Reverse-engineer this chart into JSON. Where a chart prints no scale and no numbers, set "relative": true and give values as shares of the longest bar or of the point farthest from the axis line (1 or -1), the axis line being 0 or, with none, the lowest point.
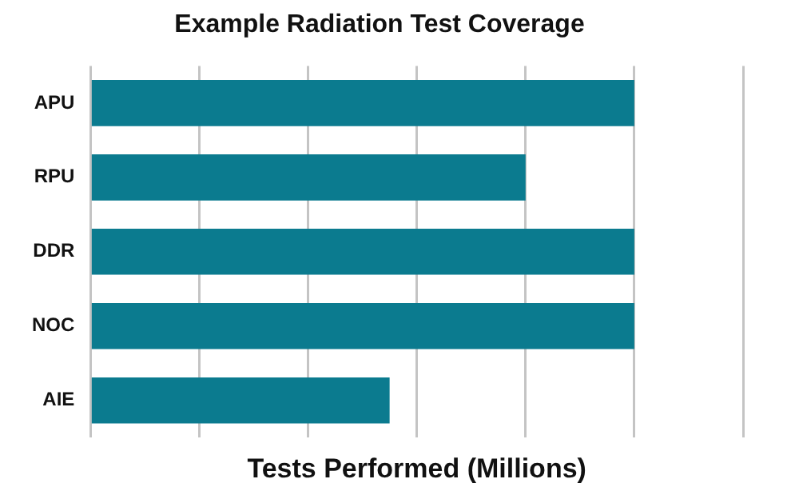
{
  "chart_data": {
    "type": "bar",
    "orientation": "horizontal",
    "title": "Example Radiation Test Coverage",
    "xlabel": "Tests Performed (Millions)",
    "categories": [
      "APU",
      "RPU",
      "DDR",
      "NOC",
      "AIE"
    ],
    "values": [
      1,
      0.8,
      1,
      1,
      0.55
    ],
    "color": "#0b7b8f",
    "relative": true,
    "grid": "x",
    "legend": false
  }
}
